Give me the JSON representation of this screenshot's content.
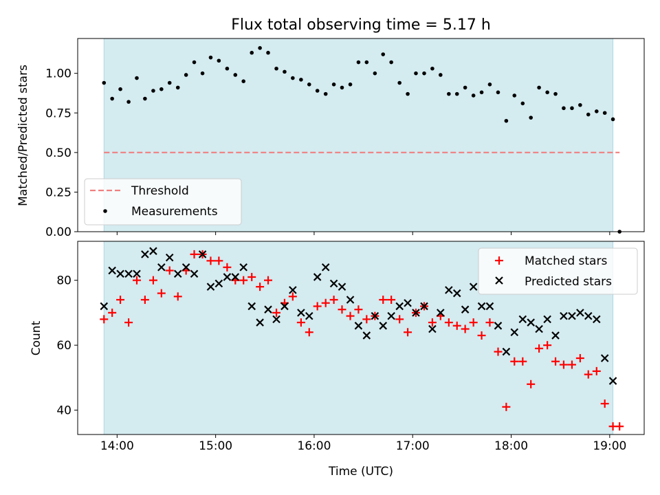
{
  "chart_data": [
    {
      "type": "scatter",
      "title": "Flux total observing time = 5.17 h",
      "xlabel": "",
      "ylabel": "Matched/Predicted stars",
      "ylim": [
        0,
        1.22
      ],
      "xlim": [
        13.6,
        19.35
      ],
      "yticks": [
        0.0,
        0.25,
        0.5,
        0.75,
        1.0
      ],
      "ytick_labels": [
        "0.00",
        "0.25",
        "0.50",
        "0.75",
        "1.00"
      ],
      "grid": false,
      "legend_position": "lower-left",
      "observing_window": [
        13.867,
        19.033
      ],
      "threshold": {
        "name": "Threshold",
        "value": 0.5,
        "x_range": [
          13.867,
          19.1
        ],
        "color": "#f08080"
      },
      "series": [
        {
          "name": "Measurements",
          "color": "#000000",
          "x": [
            13.867,
            13.95,
            14.033,
            14.117,
            14.2,
            14.283,
            14.367,
            14.45,
            14.533,
            14.617,
            14.7,
            14.783,
            14.867,
            14.95,
            15.033,
            15.117,
            15.2,
            15.283,
            15.367,
            15.45,
            15.533,
            15.617,
            15.7,
            15.783,
            15.867,
            15.95,
            16.033,
            16.117,
            16.2,
            16.283,
            16.367,
            16.45,
            16.533,
            16.617,
            16.7,
            16.783,
            16.867,
            16.95,
            17.033,
            17.117,
            17.2,
            17.283,
            17.367,
            17.45,
            17.533,
            17.617,
            17.7,
            17.783,
            17.867,
            17.95,
            18.033,
            18.117,
            18.2,
            18.283,
            18.367,
            18.45,
            18.533,
            18.617,
            18.7,
            18.783,
            18.867,
            18.95,
            19.033,
            19.1
          ],
          "y": [
            0.94,
            0.84,
            0.9,
            0.82,
            0.97,
            0.84,
            0.89,
            0.9,
            0.94,
            0.91,
            0.99,
            1.07,
            1.0,
            1.1,
            1.08,
            1.03,
            0.99,
            0.95,
            1.13,
            1.16,
            1.13,
            1.03,
            1.01,
            0.97,
            0.96,
            0.93,
            0.89,
            0.87,
            0.93,
            0.91,
            0.93,
            1.07,
            1.07,
            1.0,
            1.12,
            1.07,
            0.94,
            0.87,
            1.0,
            1.0,
            1.03,
            0.99,
            0.87,
            0.87,
            0.91,
            0.86,
            0.88,
            0.93,
            0.88,
            0.7,
            0.86,
            0.81,
            0.72,
            0.91,
            0.88,
            0.87,
            0.78,
            0.78,
            0.8,
            0.74,
            0.76,
            0.75,
            0.71,
            0.0
          ]
        }
      ]
    },
    {
      "type": "scatter",
      "title": "",
      "xlabel": "Time (UTC)",
      "ylabel": "Count",
      "ylim": [
        32.5,
        92
      ],
      "xlim": [
        13.6,
        19.35
      ],
      "yticks": [
        40,
        60,
        80
      ],
      "ytick_labels": [
        "40",
        "60",
        "80"
      ],
      "xticks": [
        14,
        15,
        16,
        17,
        18,
        19
      ],
      "xtick_labels": [
        "14:00",
        "15:00",
        "16:00",
        "17:00",
        "18:00",
        "19:00"
      ],
      "grid": false,
      "legend_position": "top-right",
      "observing_window": [
        13.867,
        19.033
      ],
      "series": [
        {
          "name": "Matched stars",
          "marker": "+",
          "color": "#ff0000",
          "x": [
            13.867,
            13.95,
            14.033,
            14.117,
            14.2,
            14.283,
            14.367,
            14.45,
            14.533,
            14.617,
            14.7,
            14.783,
            14.867,
            14.95,
            15.033,
            15.117,
            15.2,
            15.283,
            15.367,
            15.45,
            15.533,
            15.617,
            15.7,
            15.783,
            15.867,
            15.95,
            16.033,
            16.117,
            16.2,
            16.283,
            16.367,
            16.45,
            16.533,
            16.617,
            16.7,
            16.783,
            16.867,
            16.95,
            17.033,
            17.117,
            17.2,
            17.283,
            17.367,
            17.45,
            17.533,
            17.617,
            17.7,
            17.783,
            17.867,
            17.95,
            18.033,
            18.117,
            18.2,
            18.283,
            18.367,
            18.45,
            18.533,
            18.617,
            18.7,
            18.783,
            18.867,
            18.95,
            19.033,
            19.1
          ],
          "y": [
            68,
            70,
            74,
            67,
            80,
            74,
            80,
            76,
            83,
            75,
            83,
            88,
            88,
            86,
            86,
            84,
            80,
            80,
            81,
            78,
            80,
            70,
            73,
            75,
            67,
            64,
            72,
            73,
            74,
            71,
            69,
            71,
            68,
            69,
            74,
            74,
            68,
            64,
            70,
            72,
            67,
            69,
            67,
            66,
            65,
            67,
            63,
            67,
            58,
            41,
            55,
            55,
            48,
            59,
            60,
            55,
            54,
            54,
            56,
            51,
            52,
            42,
            35,
            35
          ]
        },
        {
          "name": "Predicted stars",
          "marker": "x",
          "color": "#000000",
          "x": [
            13.867,
            13.95,
            14.033,
            14.117,
            14.2,
            14.283,
            14.367,
            14.45,
            14.533,
            14.617,
            14.7,
            14.783,
            14.867,
            14.95,
            15.033,
            15.117,
            15.2,
            15.283,
            15.367,
            15.45,
            15.533,
            15.617,
            15.7,
            15.783,
            15.867,
            15.95,
            16.033,
            16.117,
            16.2,
            16.283,
            16.367,
            16.45,
            16.533,
            16.617,
            16.7,
            16.783,
            16.867,
            16.95,
            17.033,
            17.117,
            17.2,
            17.283,
            17.367,
            17.45,
            17.533,
            17.617,
            17.7,
            17.783,
            17.867,
            17.95,
            18.033,
            18.117,
            18.2,
            18.283,
            18.367,
            18.45,
            18.533,
            18.617,
            18.7,
            18.783,
            18.867,
            18.95,
            19.033
          ],
          "y": [
            72,
            83,
            82,
            82,
            82,
            88,
            89,
            84,
            87,
            82,
            84,
            82,
            88,
            78,
            79,
            81,
            81,
            84,
            72,
            67,
            71,
            68,
            72,
            77,
            70,
            69,
            81,
            84,
            79,
            78,
            74,
            66,
            63,
            69,
            66,
            69,
            72,
            73,
            70,
            72,
            65,
            70,
            77,
            76,
            71,
            78,
            72,
            72,
            66,
            58,
            64,
            68,
            67,
            65,
            68,
            63,
            69,
            69,
            70,
            69,
            68,
            56,
            49
          ]
        }
      ]
    }
  ],
  "colors": {
    "band_fill": "#d4ebf0",
    "band_edge": "#add8e6",
    "threshold": "#f08080",
    "matched": "#ff0000",
    "predicted": "#000000"
  }
}
